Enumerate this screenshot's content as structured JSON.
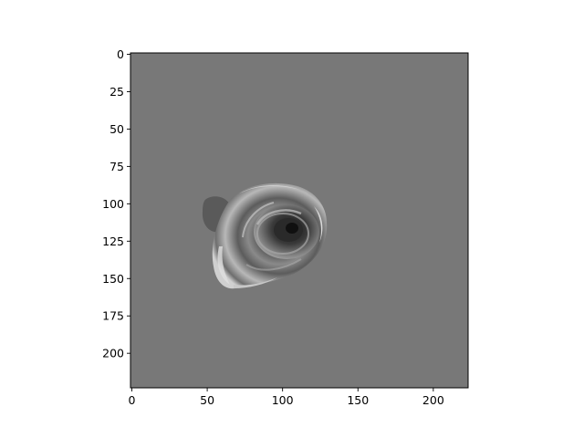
{
  "image": {
    "description_colors": {
      "background": "#787878",
      "frame": "#000000"
    }
  },
  "axes": {
    "x_range": [
      0,
      224
    ],
    "y_range": [
      224,
      0
    ],
    "x_ticks": [
      {
        "value": 0,
        "label": "0"
      },
      {
        "value": 50,
        "label": "50"
      },
      {
        "value": 100,
        "label": "100"
      },
      {
        "value": 150,
        "label": "150"
      },
      {
        "value": 200,
        "label": "200"
      }
    ],
    "y_ticks": [
      {
        "value": 0,
        "label": "0"
      },
      {
        "value": 25,
        "label": "25"
      },
      {
        "value": 50,
        "label": "50"
      },
      {
        "value": 75,
        "label": "75"
      },
      {
        "value": 100,
        "label": "100"
      },
      {
        "value": 125,
        "label": "125"
      },
      {
        "value": 150,
        "label": "150"
      },
      {
        "value": 175,
        "label": "175"
      },
      {
        "value": 200,
        "label": "200"
      }
    ]
  }
}
